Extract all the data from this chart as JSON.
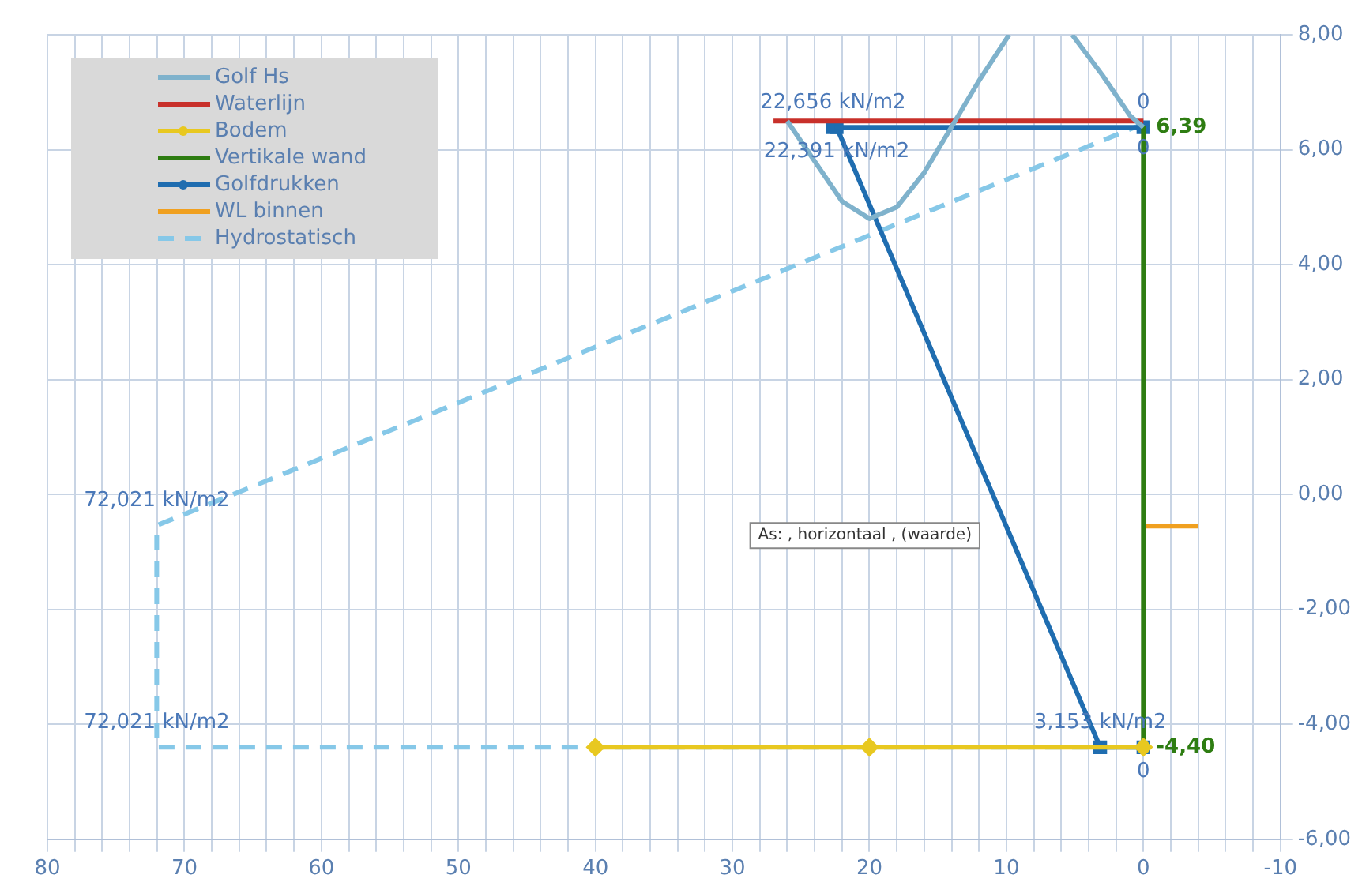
{
  "chart_data": {
    "type": "line",
    "xlim": [
      80,
      -10
    ],
    "xticks": [
      {
        "value": 80,
        "label": "80"
      },
      {
        "value": 78,
        "label": null
      },
      {
        "value": 76,
        "label": null
      },
      {
        "value": 74,
        "label": null
      },
      {
        "value": 72,
        "label": null
      },
      {
        "value": 70,
        "label": "70"
      },
      {
        "value": 68,
        "label": null
      },
      {
        "value": 66,
        "label": null
      },
      {
        "value": 64,
        "label": null
      },
      {
        "value": 62,
        "label": null
      },
      {
        "value": 60,
        "label": "60"
      },
      {
        "value": 58,
        "label": null
      },
      {
        "value": 56,
        "label": null
      },
      {
        "value": 54,
        "label": null
      },
      {
        "value": 52,
        "label": null
      },
      {
        "value": 50,
        "label": "50"
      },
      {
        "value": 48,
        "label": null
      },
      {
        "value": 46,
        "label": null
      },
      {
        "value": 44,
        "label": null
      },
      {
        "value": 42,
        "label": null
      },
      {
        "value": 40,
        "label": "40"
      },
      {
        "value": 38,
        "label": null
      },
      {
        "value": 36,
        "label": null
      },
      {
        "value": 34,
        "label": null
      },
      {
        "value": 32,
        "label": null
      },
      {
        "value": 30,
        "label": "30"
      },
      {
        "value": 28,
        "label": null
      },
      {
        "value": 26,
        "label": null
      },
      {
        "value": 24,
        "label": null
      },
      {
        "value": 22,
        "label": null
      },
      {
        "value": 20,
        "label": "20"
      },
      {
        "value": 18,
        "label": null
      },
      {
        "value": 16,
        "label": null
      },
      {
        "value": 14,
        "label": null
      },
      {
        "value": 12,
        "label": null
      },
      {
        "value": 10,
        "label": "10"
      },
      {
        "value": 8,
        "label": null
      },
      {
        "value": 6,
        "label": null
      },
      {
        "value": 4,
        "label": null
      },
      {
        "value": 2,
        "label": null
      },
      {
        "value": 0,
        "label": "0"
      },
      {
        "value": -2,
        "label": null
      },
      {
        "value": -4,
        "label": null
      },
      {
        "value": -6,
        "label": null
      },
      {
        "value": -8,
        "label": null
      },
      {
        "value": -10,
        "label": "-10"
      }
    ],
    "ylim": [
      -6,
      8
    ],
    "yticks": [
      {
        "value": -6,
        "label": "-6,00"
      },
      {
        "value": -4,
        "label": "-4,00"
      },
      {
        "value": -2,
        "label": "-2,00"
      },
      {
        "value": 0,
        "label": "0,00"
      },
      {
        "value": 2,
        "label": "2,00"
      },
      {
        "value": 4,
        "label": "4,00"
      },
      {
        "value": 6,
        "label": "6,00"
      },
      {
        "value": 8,
        "label": "8,00"
      }
    ],
    "grid": true,
    "legend": "top left",
    "annotations": [
      "As: , horizontaal , (waarde)",
      {
        "text": "0",
        "x": 0,
        "y": 6.39
      },
      {
        "text": "22,656 kN/m2",
        "x": 22.656,
        "y": 6.39
      },
      {
        "text": "22,391 kN/m2",
        "x": 22.391,
        "y": 6.39
      },
      {
        "text": "3,153 kN/m2",
        "x": 3.153,
        "y": -4.4
      },
      {
        "text": "0",
        "x": 0,
        "y": -4.4
      },
      {
        "text": "0",
        "x": 0,
        "y": 6.45
      },
      {
        "text": "72,021 kN/m2",
        "x": 72.021,
        "y": -0.54
      },
      {
        "text": "72,021 kN/m2",
        "x": 72.021,
        "y": -4.4
      }
    ],
    "series": [
      {
        "name": "Golf Hs",
        "color": "#7fb2cc",
        "marker": "none",
        "line_style": "solid",
        "x": [
          26,
          24,
          22,
          20,
          18,
          16,
          14,
          12,
          9.8,
          7.5,
          5.2,
          3,
          1,
          0
        ],
        "values": [
          6.5,
          5.8,
          5.1,
          4.8,
          5.0,
          5.6,
          6.4,
          7.2,
          8.0,
          null,
          8.0,
          7.3,
          6.6,
          6.39
        ]
      },
      {
        "name": "Waterlijn",
        "color": "#c8302a",
        "marker": "none",
        "line_style": "solid",
        "x": [
          27,
          0
        ],
        "values": [
          6.5,
          6.5
        ]
      },
      {
        "name": "Bodem",
        "color": "#e8c820",
        "marker": "diamond",
        "line_style": "solid",
        "x": [
          40,
          20,
          0
        ],
        "values": [
          -4.4,
          -4.4,
          -4.4
        ]
      },
      {
        "name": "Vertikale wand",
        "color": "#2e7d12",
        "marker": "none",
        "line_style": "solid",
        "x": [
          0,
          0
        ],
        "values": [
          6.39,
          -4.4
        ],
        "value_labels": [
          "6,39",
          "-4,40"
        ]
      },
      {
        "name": "Golfdrukken",
        "color": "#1f6db0",
        "marker": "square",
        "line_style": "solid",
        "x": [
          0,
          22.656,
          22.391,
          3.153,
          0
        ],
        "values": [
          6.39,
          6.39,
          6.39,
          -4.4,
          -4.4
        ]
      },
      {
        "name": "WL binnen",
        "color": "#f0a020",
        "marker": "none",
        "line_style": "solid",
        "x": [
          0,
          -4
        ],
        "values": [
          -0.55,
          -0.55
        ]
      },
      {
        "name": "Hydrostatisch",
        "color": "#86c8e8",
        "marker": "none",
        "line_style": "dashed",
        "x": [
          0,
          72.021,
          72.021,
          0
        ],
        "values": [
          6.45,
          -0.54,
          -4.4,
          -4.4
        ]
      }
    ]
  }
}
